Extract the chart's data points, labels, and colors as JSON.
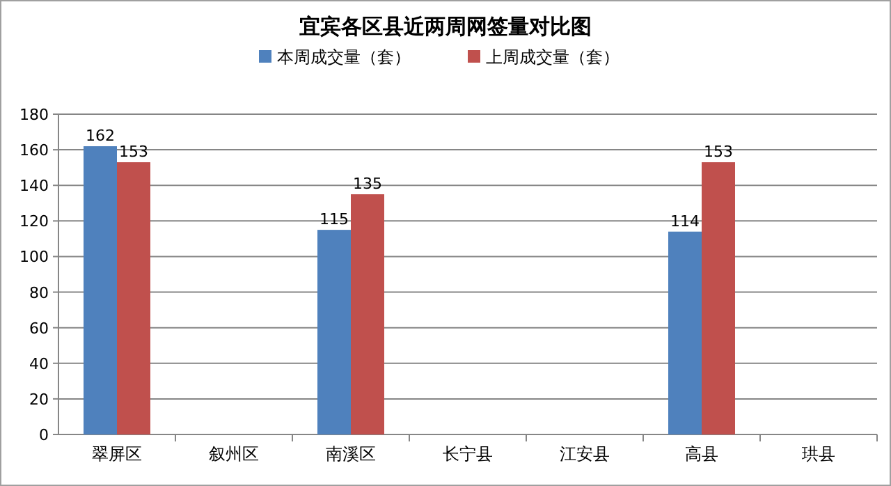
{
  "chart_data": {
    "type": "bar",
    "title": "宜宾各区县近两周网签量对比图",
    "categories": [
      "翠屏区",
      "叙州区",
      "南溪区",
      "长宁县",
      "江安县",
      "高县",
      "珙县"
    ],
    "series": [
      {
        "name": "本周成交量（套）",
        "color": "#4f81bd",
        "values": [
          162,
          null,
          115,
          null,
          null,
          114,
          null
        ]
      },
      {
        "name": "上周成交量（套）",
        "color": "#c0504d",
        "values": [
          153,
          null,
          135,
          null,
          null,
          153,
          null
        ]
      }
    ],
    "ylim": [
      0,
      180
    ],
    "yticks": [
      0,
      20,
      40,
      60,
      80,
      100,
      120,
      140,
      160,
      180
    ],
    "grid": "y",
    "legend": "top",
    "data_labels": true
  }
}
